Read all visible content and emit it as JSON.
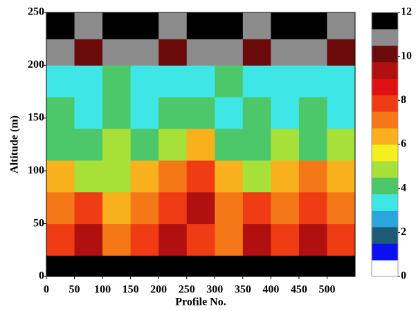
{
  "chart_data": {
    "type": "heatmap",
    "x_label": "Profile No.",
    "y_label": "Altitude (m)",
    "x_bins": [
      0,
      50,
      100,
      150,
      200,
      250,
      300,
      350,
      400,
      450,
      500,
      550
    ],
    "y_bins": [
      0,
      20,
      50,
      80,
      110,
      140,
      170,
      200,
      225,
      250
    ],
    "z": [
      [
        12,
        12,
        12,
        12,
        12,
        12,
        12,
        12,
        12,
        12,
        12
      ],
      [
        8,
        9,
        7,
        8,
        9,
        8,
        7,
        9,
        8,
        9,
        8
      ],
      [
        7,
        8,
        6,
        7,
        8,
        9,
        7,
        8,
        7,
        8,
        7
      ],
      [
        6,
        5,
        5,
        6,
        7,
        8,
        6,
        5,
        6,
        7,
        6
      ],
      [
        4,
        4,
        5,
        4,
        5,
        6,
        4,
        4,
        5,
        4,
        5
      ],
      [
        4,
        3,
        4,
        3,
        4,
        4,
        3,
        4,
        3,
        4,
        3
      ],
      [
        3,
        3,
        4,
        3,
        3,
        3,
        4,
        3,
        3,
        3,
        3
      ],
      [
        11,
        10,
        11,
        11,
        10,
        11,
        11,
        10,
        11,
        11,
        10
      ],
      [
        12,
        11,
        12,
        12,
        11,
        12,
        12,
        11,
        12,
        12,
        11
      ]
    ],
    "xlim": [
      0,
      550
    ],
    "xticks": [
      0,
      50,
      100,
      150,
      200,
      250,
      300,
      350,
      400,
      450,
      500
    ],
    "ylim": [
      0,
      250
    ],
    "yticks": [
      0,
      50,
      100,
      150,
      200,
      250
    ],
    "zlim": [
      0,
      12
    ],
    "colorbar_ticks": [
      0,
      2,
      4,
      6,
      8,
      10,
      12
    ],
    "colors": [
      "#ffffff",
      "#0a10f0",
      "#1d5a78",
      "#2aa6dc",
      "#3ee6e6",
      "#4cc86a",
      "#a8e03a",
      "#f4f01e",
      "#f8b01c",
      "#f47818",
      "#f03c14",
      "#e01010",
      "#b01010",
      "#6a0a0a",
      "#8c8c8c",
      "#000000"
    ]
  }
}
